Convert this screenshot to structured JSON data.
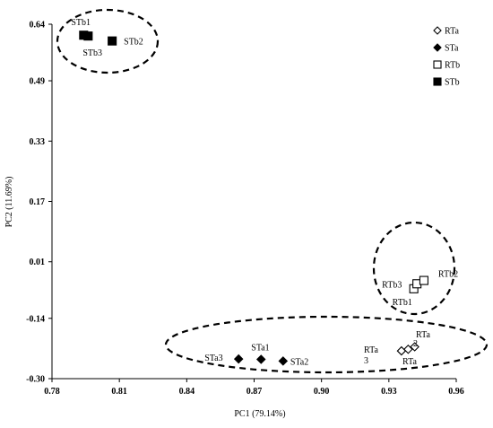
{
  "chart_data": {
    "type": "scatter",
    "title": "",
    "xlabel": "PC1 (79.14%)",
    "ylabel": "PC2 (11.69%)",
    "xlim": [
      0.78,
      0.96
    ],
    "ylim": [
      -0.3,
      0.64
    ],
    "xticks": [
      "0.78",
      "0.81",
      "0.84",
      "0.87",
      "0.90",
      "0.93",
      "0.96"
    ],
    "yticks": [
      "0.64",
      "0.49",
      "0.33",
      "0.17",
      "0.01",
      "-0.14",
      "-0.30"
    ],
    "grid": false,
    "legend_position": "top-right",
    "series": [
      {
        "name": "RTa",
        "marker": "open-diamond",
        "points": [
          {
            "x": 0.9356,
            "y": -0.2264,
            "label": ""
          },
          {
            "x": 0.9386,
            "y": -0.222,
            "label": ""
          },
          {
            "x": 0.9415,
            "y": -0.2156,
            "label": ""
          }
        ]
      },
      {
        "name": "STa",
        "marker": "filled-diamond",
        "points": [
          {
            "x": 0.8631,
            "y": -0.2478,
            "label": "STa3"
          },
          {
            "x": 0.8731,
            "y": -0.2489,
            "label": "STa1"
          },
          {
            "x": 0.8829,
            "y": -0.2533,
            "label": "STa2"
          }
        ]
      },
      {
        "name": "RTb",
        "marker": "open-square",
        "points": [
          {
            "x": 0.9411,
            "y": -0.0616,
            "label": "RTb1"
          },
          {
            "x": 0.9425,
            "y": -0.0484,
            "label": "RTb3"
          },
          {
            "x": 0.9456,
            "y": -0.0396,
            "label": "RTb2"
          }
        ]
      },
      {
        "name": "STb",
        "marker": "filled-square",
        "points": [
          {
            "x": 0.7941,
            "y": 0.6109,
            "label": "STb1"
          },
          {
            "x": 0.7961,
            "y": 0.6087,
            "label": "STb3"
          },
          {
            "x": 0.8068,
            "y": 0.5956,
            "label": "STb2"
          }
        ]
      }
    ],
    "annotations": [
      "RTa",
      "RTa",
      "RTa",
      "2",
      "3"
    ]
  }
}
